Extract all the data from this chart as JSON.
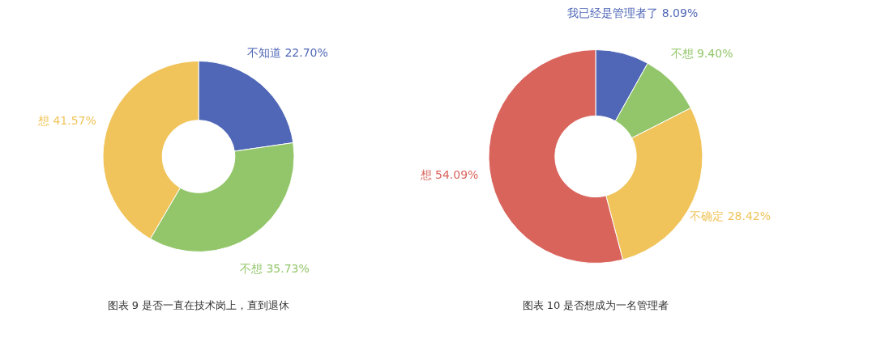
{
  "chart_data": [
    {
      "type": "donut",
      "title": "图表 9 是否一直在技术岗上，直到退休",
      "categories": [
        "不知道",
        "不想",
        "想"
      ],
      "values": [
        22.7,
        35.73,
        41.57
      ],
      "value_labels": [
        "22.70%",
        "35.73%",
        "41.57%"
      ],
      "data_labels": true,
      "colors": [
        "#4f67b6",
        "#93c66a",
        "#f0c45a"
      ]
    },
    {
      "type": "donut",
      "title": "图表 10  是否想成为一名管理者",
      "categories": [
        "我已经是管理者了",
        "不想",
        "不确定",
        "想"
      ],
      "values": [
        8.09,
        9.4,
        28.42,
        54.09
      ],
      "value_labels": [
        "8.09%",
        "9.40%",
        "28.42%",
        "54.09%"
      ],
      "data_labels": true,
      "colors": [
        "#4f67b6",
        "#93c66a",
        "#f0c45a",
        "#d9645c"
      ]
    }
  ]
}
